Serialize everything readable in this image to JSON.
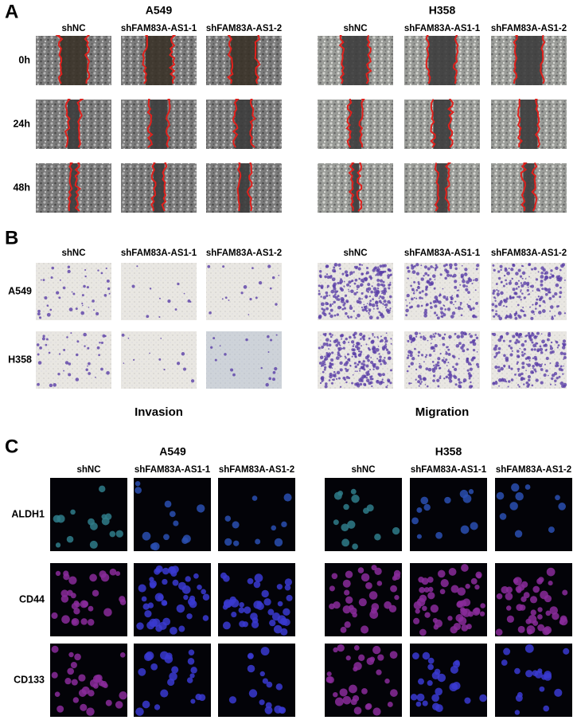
{
  "panels": [
    {
      "label": "A",
      "groups": [
        {
          "title": "A549",
          "columns": [
            "shNC",
            "shFAM83A-AS1-1",
            "shFAM83A-AS1-2"
          ]
        },
        {
          "title": "H358",
          "columns": [
            "shNC",
            "shFAM83A-AS1-1",
            "shFAM83A-AS1-2"
          ]
        }
      ],
      "rows": [
        "0h",
        "24h",
        "48h"
      ]
    },
    {
      "label": "B",
      "groups": [
        {
          "columns": [
            "shNC",
            "shFAM83A-AS1-1",
            "shFAM83A-AS1-2"
          ],
          "caption": "Invasion"
        },
        {
          "columns": [
            "shNC",
            "shFAM83A-AS1-1",
            "shFAM83A-AS1-2"
          ],
          "caption": "Migration"
        }
      ],
      "rows": [
        "A549",
        "H358"
      ]
    },
    {
      "label": "C",
      "groups": [
        {
          "title": "A549",
          "columns": [
            "shNC",
            "shFAM83A-AS1-1",
            "shFAM83A-AS1-2"
          ]
        },
        {
          "title": "H358",
          "columns": [
            "shNC",
            "shFAM83A-AS1-1",
            "shFAM83A-AS1-2"
          ]
        }
      ],
      "rows": [
        "ALDH1",
        "CD44",
        "CD133"
      ]
    }
  ]
}
